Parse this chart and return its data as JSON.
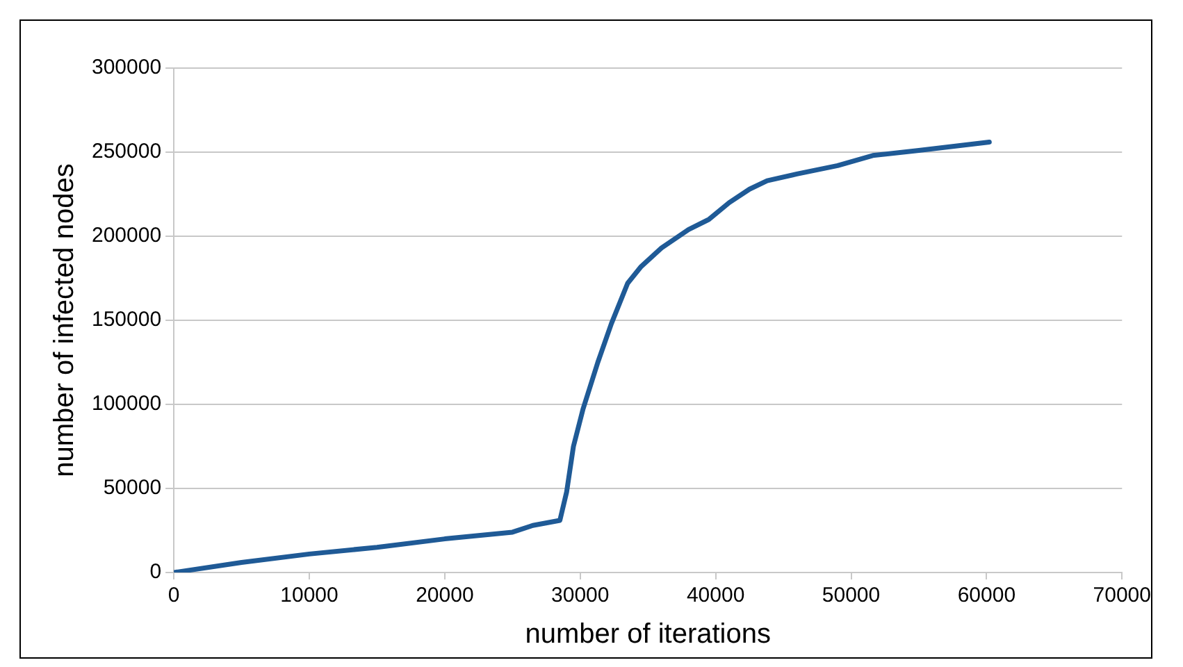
{
  "chart_data": {
    "type": "line",
    "xlabel": "number of iterations",
    "ylabel": "number of infected nodes",
    "x": [
      0,
      5000,
      10000,
      15000,
      20000,
      25000,
      26500,
      28500,
      29000,
      29500,
      30200,
      31300,
      32300,
      33500,
      34500,
      36000,
      38000,
      39500,
      41000,
      42500,
      43800,
      46000,
      49000,
      51600,
      55000,
      60200
    ],
    "series": [
      {
        "color": "#1f5a96",
        "values": [
          0,
          6000,
          11000,
          15000,
          20000,
          24000,
          28000,
          31000,
          48000,
          75000,
          97000,
          125000,
          148000,
          172000,
          182000,
          193000,
          204000,
          210000,
          220000,
          228000,
          233000,
          237000,
          242000,
          248000,
          251000,
          256000
        ]
      }
    ],
    "xlim": [
      0,
      70000
    ],
    "xticks": [
      0,
      10000,
      20000,
      30000,
      40000,
      50000,
      60000,
      70000
    ],
    "ylim": [
      0,
      300000
    ],
    "yticks": [
      0,
      50000,
      100000,
      150000,
      200000,
      250000,
      300000
    ],
    "grid": "y",
    "marker": "none",
    "line_style": "solid",
    "legend": false
  }
}
